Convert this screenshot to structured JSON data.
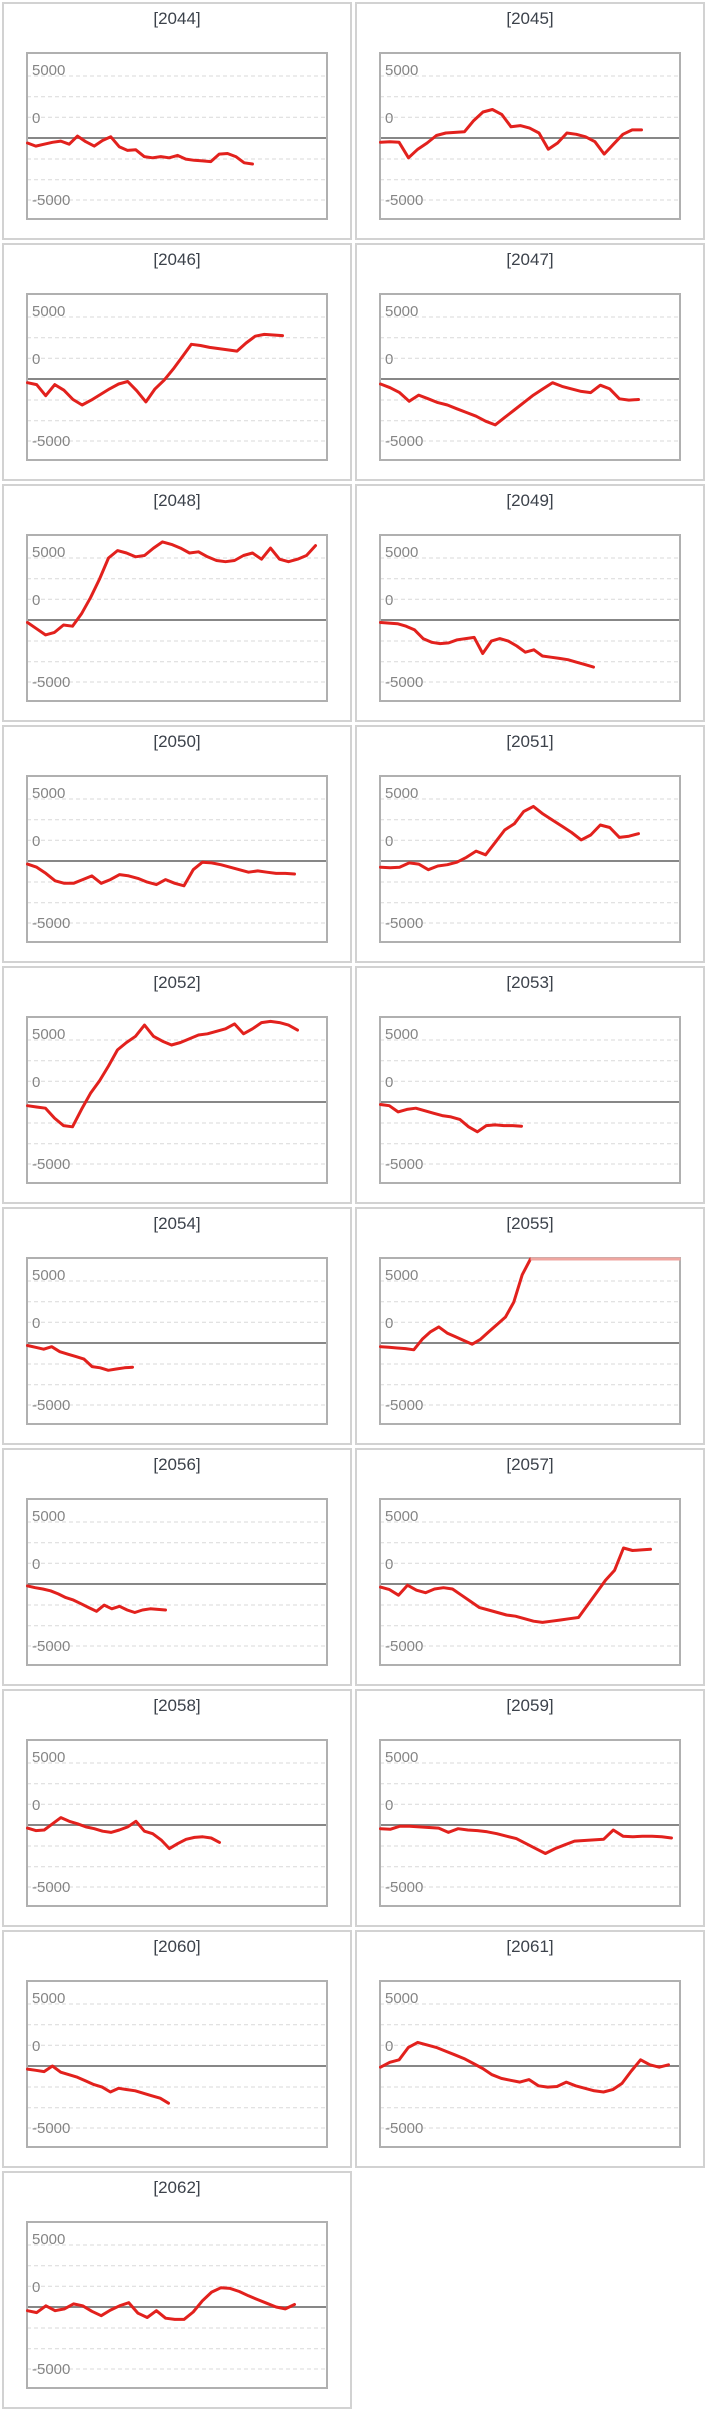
{
  "page": {
    "background": "#ffffff",
    "rows": 10,
    "cols": 2
  },
  "chart_data": {
    "type": "line",
    "description": "Trellis of 19 small line charts (small multiples), one per year 2044-2062, red series around a gray zero axis",
    "axis": {
      "ylabels": [
        "5000",
        "0",
        "-5000"
      ],
      "yticks_labeled": [
        5000,
        0,
        -5000
      ],
      "ylim": [
        -6600,
        6900
      ],
      "gridline_interval": 1666.67,
      "grid": "dashed horizontal",
      "zero_line": "solid gray"
    },
    "style": {
      "line_color": "#e2211d",
      "overflow_color": "#efa6a0",
      "grid_color": "#d9d9d9",
      "zero_color": "#878787",
      "plot_border_color": "#b0b0b0",
      "card_border_color": "#d2d2d2",
      "label_color": "#858585",
      "title_color": "#3c424b"
    },
    "panels": [
      {
        "title": "[2044]",
        "x_end": 0.75,
        "values": [
          -400,
          -650,
          -500,
          -350,
          -250,
          -500,
          150,
          -300,
          -650,
          -200,
          100,
          -700,
          -1000,
          -950,
          -1500,
          -1600,
          -1500,
          -1600,
          -1400,
          -1700,
          -1800,
          -1850,
          -1900,
          -1300,
          -1250,
          -1500,
          -2000,
          -2100
        ]
      },
      {
        "title": "[2045]",
        "x_end": 0.87,
        "values": [
          -350,
          -300,
          -350,
          -1600,
          -900,
          -400,
          200,
          400,
          450,
          500,
          1400,
          2100,
          2300,
          1900,
          900,
          1000,
          800,
          400,
          -900,
          -400,
          400,
          300,
          100,
          -300,
          -1300,
          -500,
          300,
          650,
          650
        ]
      },
      {
        "title": "[2046]",
        "x_end": 0.85,
        "values": [
          -300,
          -450,
          -1350,
          -450,
          -900,
          -1650,
          -2100,
          -1700,
          -1250,
          -800,
          -400,
          -200,
          -950,
          -1850,
          -800,
          -100,
          800,
          1800,
          2800,
          2700,
          2550,
          2450,
          2350,
          2250,
          2900,
          3450,
          3600,
          3550,
          3500
        ]
      },
      {
        "title": "[2047]",
        "x_end": 0.86,
        "values": [
          -400,
          -700,
          -1100,
          -1800,
          -1300,
          -1600,
          -1900,
          -2100,
          -2400,
          -2700,
          -3000,
          -3400,
          -3700,
          -3100,
          -2500,
          -1900,
          -1300,
          -800,
          -300,
          -600,
          -800,
          -1000,
          -1100,
          -500,
          -800,
          -1600,
          -1700,
          -1650
        ]
      },
      {
        "title": "[2048]",
        "x_end": 0.96,
        "values": [
          -200,
          -700,
          -1200,
          -1000,
          -400,
          -500,
          500,
          1800,
          3300,
          5000,
          5600,
          5400,
          5100,
          5200,
          5800,
          6300,
          6100,
          5800,
          5400,
          5500,
          5100,
          4800,
          4700,
          4800,
          5200,
          5400,
          4900,
          5800,
          4900,
          4700,
          4900,
          5200,
          6000
        ]
      },
      {
        "title": "[2049]",
        "x_end": 0.71,
        "values": [
          -200,
          -250,
          -300,
          -500,
          -800,
          -1500,
          -1800,
          -1900,
          -1850,
          -1600,
          -1500,
          -1400,
          -2700,
          -1700,
          -1500,
          -1700,
          -2100,
          -2600,
          -2400,
          -2900,
          -3000,
          -3100,
          -3200,
          -3400,
          -3600,
          -3800
        ]
      },
      {
        "title": "[2050]",
        "x_end": 0.89,
        "values": [
          -250,
          -500,
          -1000,
          -1600,
          -1800,
          -1800,
          -1500,
          -1200,
          -1800,
          -1500,
          -1100,
          -1200,
          -1400,
          -1700,
          -1900,
          -1500,
          -1800,
          -2000,
          -700,
          -100,
          -150,
          -300,
          -500,
          -700,
          -900,
          -800,
          -900,
          -1000,
          -1000,
          -1050
        ]
      },
      {
        "title": "[2051]",
        "x_end": 0.86,
        "values": [
          -500,
          -550,
          -500,
          -150,
          -250,
          -700,
          -400,
          -300,
          -100,
          300,
          800,
          500,
          1500,
          2500,
          3000,
          4000,
          4400,
          3800,
          3300,
          2800,
          2300,
          1700,
          2100,
          2900,
          2700,
          1900,
          2000,
          2200
        ]
      },
      {
        "title": "[2052]",
        "x_end": 0.9,
        "values": [
          -300,
          -400,
          -500,
          -1300,
          -1900,
          -2000,
          -600,
          700,
          1700,
          2900,
          4200,
          4800,
          5300,
          6200,
          5300,
          4900,
          4600,
          4800,
          5100,
          5400,
          5500,
          5700,
          5900,
          6300,
          5500,
          5900,
          6400,
          6500,
          6400,
          6200,
          5800
        ]
      },
      {
        "title": "[2053]",
        "x_end": 0.47,
        "values": [
          -200,
          -300,
          -800,
          -600,
          -500,
          -700,
          -900,
          -1100,
          -1200,
          -1400,
          -2000,
          -2400,
          -1900,
          -1850,
          -1900,
          -1900,
          -1950
        ]
      },
      {
        "title": "[2054]",
        "x_end": 0.35,
        "values": [
          -200,
          -350,
          -500,
          -300,
          -700,
          -900,
          -1100,
          -1300,
          -1900,
          -2000,
          -2200,
          -2100,
          -2000,
          -1950
        ]
      },
      {
        "title": "[2055]",
        "x_end": 0.5,
        "values": [
          -300,
          -350,
          -400,
          -450,
          -550,
          300,
          900,
          1300,
          800,
          500,
          200,
          -100,
          300,
          900,
          1500,
          2100,
          3300,
          5500,
          7200
        ],
        "overflow": [
          0.5,
          1.0
        ]
      },
      {
        "title": "[2056]",
        "x_end": 0.46,
        "values": [
          -150,
          -300,
          -400,
          -550,
          -800,
          -1100,
          -1300,
          -1600,
          -1900,
          -2200,
          -1700,
          -2000,
          -1800,
          -2100,
          -2300,
          -2100,
          -2000,
          -2050,
          -2100
        ]
      },
      {
        "title": "[2057]",
        "x_end": 0.9,
        "values": [
          -250,
          -450,
          -900,
          -100,
          -500,
          -700,
          -400,
          -300,
          -400,
          -900,
          -1400,
          -1900,
          -2100,
          -2300,
          -2500,
          -2600,
          -2800,
          -3000,
          -3100,
          -3000,
          -2900,
          -2800,
          -2700,
          -1700,
          -700,
          300,
          1100,
          2900,
          2700,
          2750,
          2800
        ]
      },
      {
        "title": "[2058]",
        "x_end": 0.64,
        "values": [
          -250,
          -450,
          -400,
          100,
          600,
          300,
          100,
          -150,
          -300,
          -500,
          -600,
          -400,
          -150,
          300,
          -500,
          -700,
          -1200,
          -1900,
          -1500,
          -1150,
          -1000,
          -950,
          -1050,
          -1400
        ]
      },
      {
        "title": "[2059]",
        "x_end": 0.97,
        "values": [
          -300,
          -350,
          -100,
          -100,
          -150,
          -200,
          -250,
          -600,
          -300,
          -400,
          -450,
          -550,
          -700,
          -900,
          -1100,
          -1500,
          -1900,
          -2300,
          -1900,
          -1600,
          -1300,
          -1250,
          -1200,
          -1150,
          -400,
          -900,
          -950,
          -900,
          -900,
          -950,
          -1050
        ]
      },
      {
        "title": "[2060]",
        "x_end": 0.47,
        "values": [
          -250,
          -350,
          -450,
          0,
          -500,
          -700,
          -900,
          -1200,
          -1500,
          -1700,
          -2100,
          -1800,
          -1900,
          -2000,
          -2200,
          -2400,
          -2600,
          -3000
        ]
      },
      {
        "title": "[2061]",
        "x_end": 0.96,
        "values": [
          -100,
          300,
          500,
          1500,
          1900,
          1700,
          1500,
          1200,
          900,
          600,
          200,
          -200,
          -700,
          -1000,
          -1150,
          -1300,
          -1100,
          -1600,
          -1700,
          -1650,
          -1300,
          -1600,
          -1800,
          -2000,
          -2100,
          -1900,
          -1400,
          -400,
          500,
          100,
          -100,
          100
        ]
      },
      {
        "title": "[2062]",
        "x_end": 0.89,
        "values": [
          -300,
          -450,
          100,
          -300,
          -150,
          250,
          100,
          -350,
          -700,
          -250,
          100,
          350,
          -500,
          -850,
          -300,
          -900,
          -1000,
          -1000,
          -400,
          500,
          1200,
          1550,
          1500,
          1250,
          900,
          600,
          300,
          0,
          -150,
          200
        ]
      }
    ]
  }
}
